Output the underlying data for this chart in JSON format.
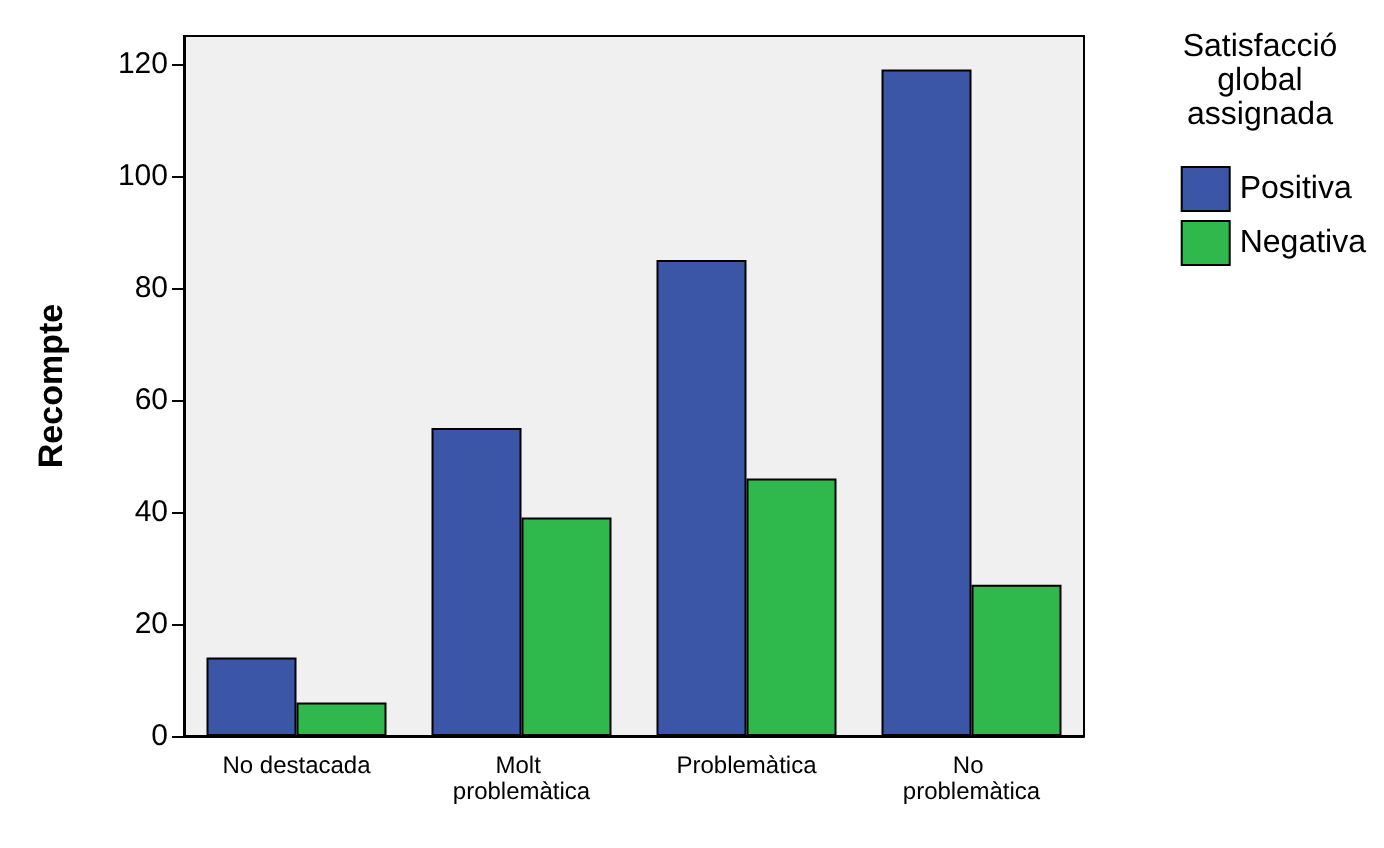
{
  "chart_data": {
    "type": "bar",
    "ylabel": "Recompte",
    "legend_title": "Satisfacció global assignada",
    "categories": [
      "No destacada",
      "Molt problemàtica",
      "Problemàtica",
      "No problemàtica"
    ],
    "series": [
      {
        "name": "Positiva",
        "color": "#3b55a7",
        "values": [
          14,
          55,
          85,
          119
        ]
      },
      {
        "name": "Negativa",
        "color": "#2fb84b",
        "values": [
          6,
          39,
          46,
          27
        ]
      }
    ],
    "ylim": [
      0,
      125
    ],
    "yticks": [
      0,
      20,
      40,
      60,
      80,
      100,
      120
    ],
    "grid": false,
    "legend": "right"
  }
}
